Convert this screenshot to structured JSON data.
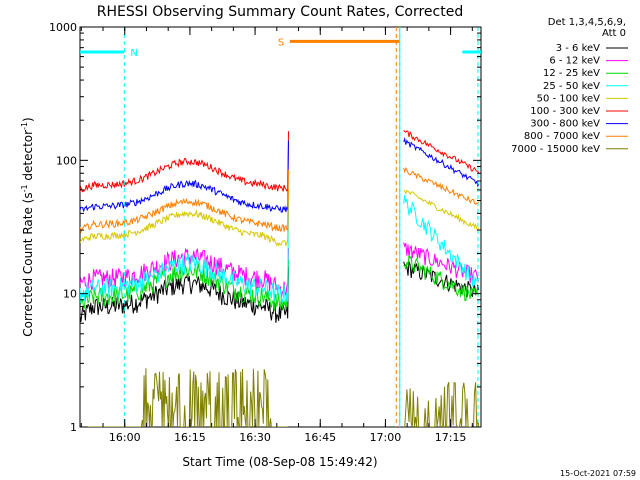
{
  "chart_data": {
    "type": "line",
    "title": "RHESSI Observing Summary Count Rates, Corrected",
    "xlabel": "Start Time (08-Sep-08 15:49:42)",
    "ylabel_main": "Corrected Count Rate (s",
    "ylabel_sup1": "-1",
    "ylabel_mid": " detector",
    "ylabel_sup2": "-1",
    "ylabel_end": ")",
    "yscale": "log",
    "ylim": [
      1,
      1000
    ],
    "xlim_minutes": [
      0,
      92.3
    ],
    "x_ticks": [
      {
        "m": 10.3,
        "label": "16:00"
      },
      {
        "m": 25.3,
        "label": "16:15"
      },
      {
        "m": 40.3,
        "label": "16:30"
      },
      {
        "m": 55.3,
        "label": "16:45"
      },
      {
        "m": 70.3,
        "label": "17:00"
      },
      {
        "m": 85.3,
        "label": "17:15"
      }
    ],
    "y_ticks": [
      {
        "v": 1,
        "label": "1"
      },
      {
        "v": 10,
        "label": "10"
      },
      {
        "v": 100,
        "label": "100"
      },
      {
        "v": 1000,
        "label": "1000"
      }
    ],
    "legend_header": [
      "Det 1,3,4,5,6,9,",
      "Att 0"
    ],
    "legend_position": "top-right, outside plot",
    "timestamp": "15-Oct-2021 07:59",
    "gaps": [
      {
        "start": 48.3,
        "end": 73.5
      }
    ],
    "series": [
      {
        "name": "3 - 6 keV",
        "color": "#000000",
        "before": [
          6.5,
          8,
          12,
          7
        ],
        "after": [
          16,
          10
        ]
      },
      {
        "name": "6 - 12 keV",
        "color": "#ff00ff",
        "before": [
          12,
          13,
          19,
          11
        ],
        "after": [
          22,
          13
        ]
      },
      {
        "name": "12 - 25 keV",
        "color": "#00d800",
        "before": [
          8,
          9.5,
          15,
          8.5
        ],
        "after": [
          18,
          9
        ]
      },
      {
        "name": "25 - 50 keV",
        "color": "#00ffff",
        "before": [
          10,
          11,
          17,
          10
        ],
        "after": [
          50,
          11
        ]
      },
      {
        "name": "50 - 100 keV",
        "color": "#d8c800",
        "before": [
          25,
          27,
          40,
          24
        ],
        "after": [
          60,
          30
        ]
      },
      {
        "name": "100 - 300 keV",
        "color": "#ff0000",
        "before": [
          60,
          65,
          98,
          62
        ],
        "after": [
          165,
          80
        ]
      },
      {
        "name": "300 - 800 keV",
        "color": "#0000ff",
        "before": [
          42,
          45,
          67,
          43
        ],
        "after": [
          140,
          65
        ]
      },
      {
        "name": "800 - 7000 keV",
        "color": "#ff8000",
        "before": [
          30,
          33,
          49,
          31
        ],
        "after": [
          85,
          46
        ]
      },
      {
        "name": "7000 - 15000 keV",
        "color": "#808000",
        "before": [
          1,
          1,
          2.5,
          1
        ],
        "after": [
          2.2,
          1
        ]
      }
    ],
    "flags": [
      {
        "label": "N",
        "color": "#00ffff",
        "start": 0,
        "end": 10.2,
        "level": 650
      },
      {
        "label": "N",
        "color": "#00ffff",
        "start": 88,
        "end": 92.3,
        "level": 650
      },
      {
        "label": "S",
        "color": "#ff8000",
        "start": 48.3,
        "end": 73.5,
        "level": 780
      }
    ],
    "vlines": [
      {
        "m": 10.2,
        "color": "#00ffff",
        "style": "dashed"
      },
      {
        "m": 73.6,
        "color": "#00ffff",
        "style": "dashed"
      },
      {
        "m": 91.6,
        "color": "#00ffff",
        "style": "dashed"
      },
      {
        "m": 72.8,
        "color": "#ff8000",
        "style": "dashed"
      },
      {
        "m": 73.6,
        "color": "#00ffff",
        "style": "solid"
      }
    ]
  }
}
